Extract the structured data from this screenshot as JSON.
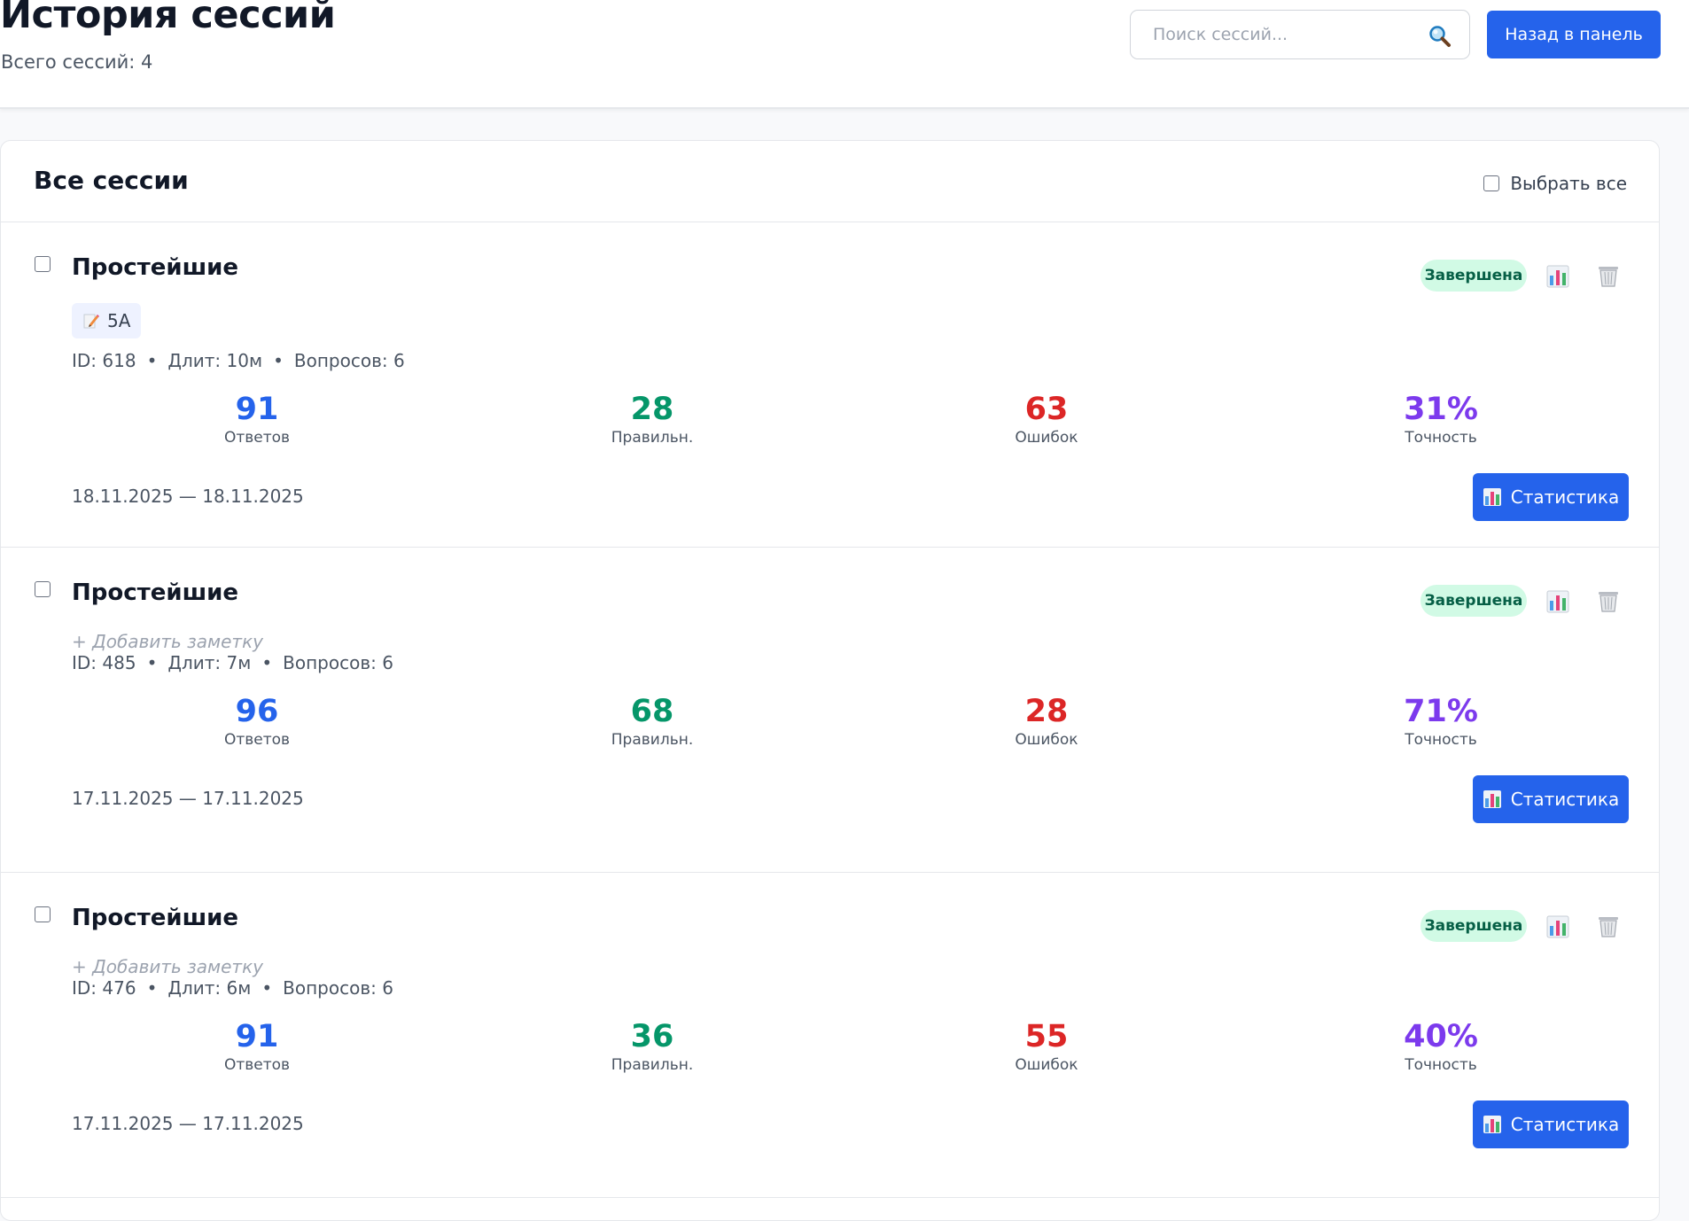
{
  "header": {
    "title": "История сессий",
    "subtitle": "Всего сессий: 4",
    "search_placeholder": "Поиск сессий...",
    "back_label": "Назад в панель"
  },
  "panel": {
    "title": "Все сессии",
    "select_all_label": "Выбрать все"
  },
  "sessions": [
    {
      "title": "Простейшие",
      "status": "Завершена",
      "tag": "5А",
      "note": "",
      "id_text": "ID: 618",
      "duration_text": "Длит: 10м",
      "questions_text": "Вопросов: 6",
      "answers": "91",
      "answers_label": "Ответов",
      "correct": "28",
      "correct_label": "Правильн.",
      "errors": "63",
      "errors_label": "Ошибок",
      "accuracy": "31%",
      "accuracy_label": "Точность",
      "dates": "18.11.2025 — 18.11.2025",
      "stats_label": "Статистика"
    },
    {
      "title": "Простейшие",
      "status": "Завершена",
      "tag": "",
      "note": "+ Добавить заметку",
      "id_text": "ID: 485",
      "duration_text": "Длит: 7м",
      "questions_text": "Вопросов: 6",
      "answers": "96",
      "answers_label": "Ответов",
      "correct": "68",
      "correct_label": "Правильн.",
      "errors": "28",
      "errors_label": "Ошибок",
      "accuracy": "71%",
      "accuracy_label": "Точность",
      "dates": "17.11.2025 — 17.11.2025",
      "stats_label": "Статистика"
    },
    {
      "title": "Простейшие",
      "status": "Завершена",
      "tag": "",
      "note": "+ Добавить заметку",
      "id_text": "ID: 476",
      "duration_text": "Длит: 6м",
      "questions_text": "Вопросов: 6",
      "answers": "91",
      "answers_label": "Ответов",
      "correct": "36",
      "correct_label": "Правильн.",
      "errors": "55",
      "errors_label": "Ошибок",
      "accuracy": "40%",
      "accuracy_label": "Точность",
      "dates": "17.11.2025 — 17.11.2025",
      "stats_label": "Статистика"
    }
  ],
  "icons": {
    "search": "magnifier-icon",
    "chart": "bar-chart-icon",
    "trash": "trash-icon",
    "pencil": "pencil-icon"
  },
  "colors": {
    "primary": "#2563eb",
    "success_bg": "#d1fae5",
    "success_text": "#065f46",
    "answers": "#2563eb",
    "correct": "#059669",
    "errors": "#dc2626",
    "accuracy": "#7c3aed"
  }
}
